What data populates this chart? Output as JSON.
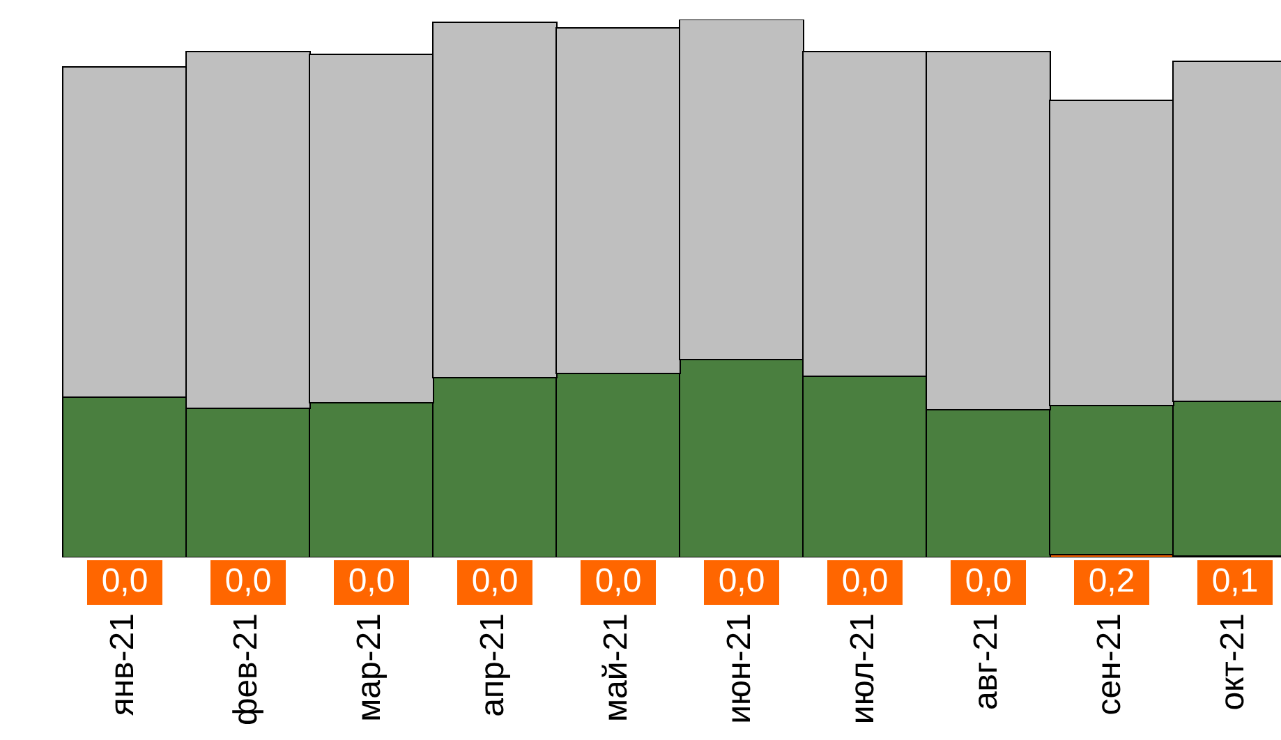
{
  "chart_data": {
    "type": "bar",
    "stacked": true,
    "categories": [
      "янв-21",
      "фев-21",
      "мар-21",
      "апр-21",
      "май-21",
      "июн-21",
      "июл-21",
      "авг-21",
      "сен-21",
      "окт-21"
    ],
    "series": [
      {
        "color": "#ff6600",
        "values": [
          0,
          0,
          0,
          0,
          0,
          0,
          0,
          0,
          0.2,
          0.1
        ],
        "value_labels": [
          "0,0",
          "0,0",
          "0,0",
          "0,0",
          "0,0",
          "0,0",
          "0,0",
          "0,0",
          "0,2",
          "0,1"
        ]
      },
      {
        "color": "#4a7f3f",
        "values": [
          11.5,
          10.7,
          11.1,
          12.9,
          13.2,
          14.2,
          13.0,
          10.6,
          10.7,
          11.1
        ]
      },
      {
        "color": "#bfbfbf",
        "values": [
          23.7,
          25.6,
          25.0,
          25.5,
          24.8,
          24.4,
          23.3,
          25.7,
          21.9,
          24.4
        ]
      }
    ]
  }
}
